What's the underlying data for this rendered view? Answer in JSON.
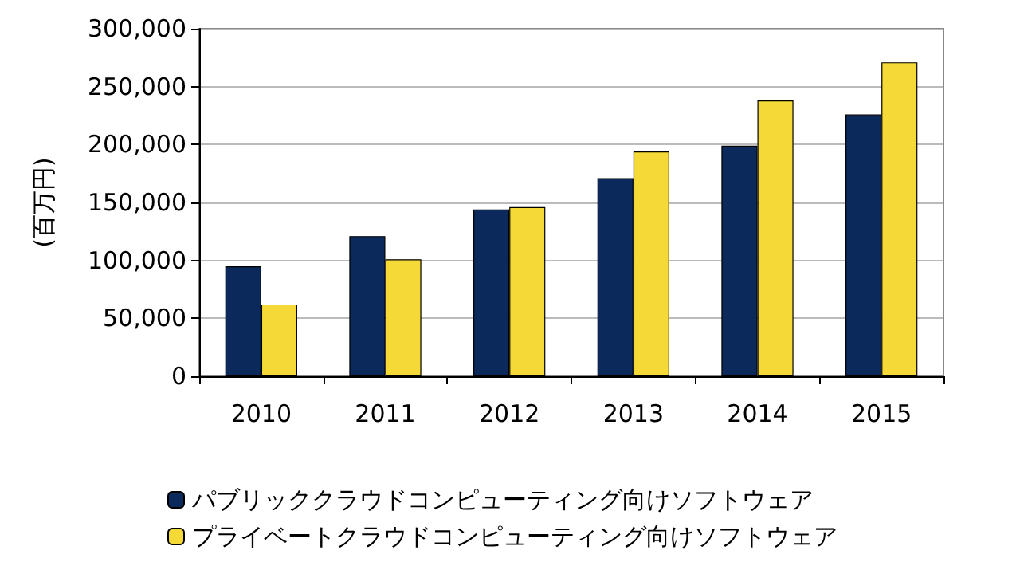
{
  "chart_data": {
    "type": "bar",
    "ylabel": "(百万円)",
    "categories": [
      "2010",
      "2011",
      "2012",
      "2013",
      "2014",
      "2015"
    ],
    "series": [
      {
        "name": "パブリッククラウドコンピューティング向けソフトウェア",
        "color": "#0b2a5b",
        "values": [
          95000,
          121000,
          144000,
          171000,
          199000,
          226000
        ]
      },
      {
        "name": "プライベートクラウドコンピューティング向けソフトウェア",
        "color": "#f5d936",
        "values": [
          62000,
          101000,
          146000,
          194000,
          238000,
          271000
        ]
      }
    ],
    "ylim": [
      0,
      300000
    ],
    "yticks": [
      0,
      {
        "value": 50000,
        "label": "50,000"
      },
      {
        "value": 100000,
        "label": "100,000"
      },
      {
        "value": 150000,
        "label": "150,000"
      },
      {
        "value": 200000,
        "label": "200,000"
      },
      {
        "value": 250000,
        "label": "250,000"
      },
      {
        "value": 300000,
        "label": "300,000"
      }
    ],
    "grid": "y",
    "legend": "bottom"
  }
}
